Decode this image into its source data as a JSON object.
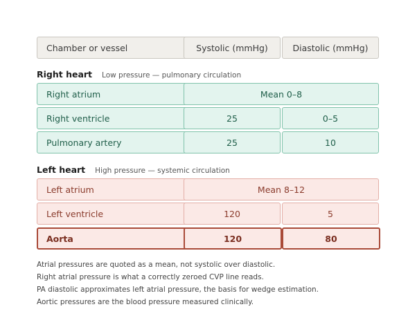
{
  "header": {
    "col1": "Chamber or vessel",
    "col2": "Systolic (mmHg)",
    "col3": "Diastolic (mmHg)"
  },
  "right_heart": {
    "title": "Right heart",
    "subtitle": "Low pressure — pulmonary circulation",
    "rows": [
      {
        "name": "Right atrium",
        "merged": "Mean 0–8"
      },
      {
        "name": "Right ventricle",
        "systolic": "25",
        "diastolic": "0–5"
      },
      {
        "name": "Pulmonary artery",
        "systolic": "25",
        "diastolic": "10"
      }
    ]
  },
  "left_heart": {
    "title": "Left heart",
    "subtitle": "High pressure — systemic circulation",
    "rows": [
      {
        "name": "Left atrium",
        "merged": "Mean 8–12"
      },
      {
        "name": "Left ventricle",
        "systolic": "120",
        "diastolic": "5"
      },
      {
        "name": "Aorta",
        "systolic": "120",
        "diastolic": "80"
      }
    ]
  },
  "notes": [
    "Atrial pressures are quoted as a mean, not systolic over diastolic.",
    "Right atrial pressure is what a correctly zeroed CVP line reads.",
    "PA diastolic approximates left atrial pressure, the basis for wedge estimation.",
    "Aortic pressures are the blood pressure measured clinically."
  ],
  "colors": {
    "low_pressure": "#e3f4ee",
    "high_pressure": "#fbe9e6",
    "emphasis_border": "#a94a38"
  }
}
